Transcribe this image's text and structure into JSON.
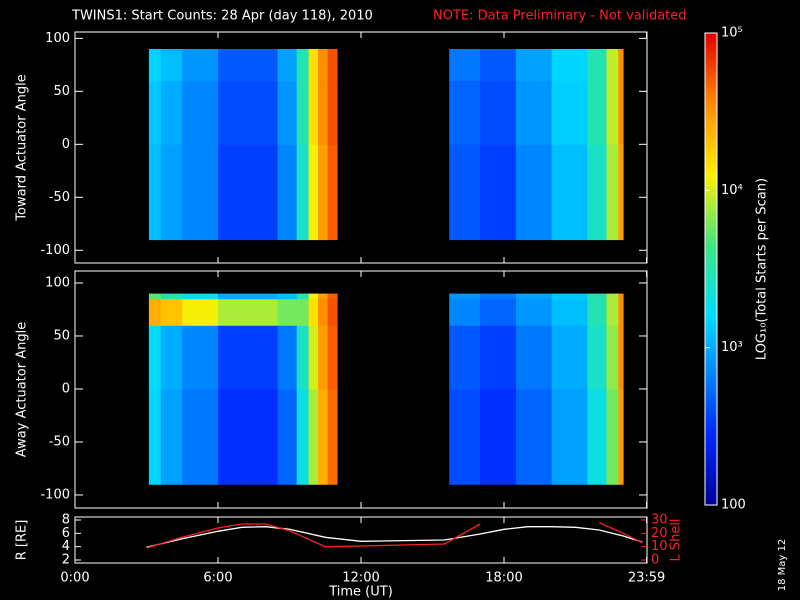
{
  "title": "TWINS1: Start Counts: 28 Apr (day 118), 2010",
  "note": "NOTE: Data Preliminary - Not validated",
  "stamp": "18 May 12",
  "colorbar": {
    "label": "LOG₁₀(Total Starts per Scan)",
    "lim": [
      100,
      100000
    ],
    "log": true,
    "ticks": [
      100,
      {
        "value": 1000,
        "label": "10³"
      },
      {
        "value": 10000,
        "label": "10⁴"
      },
      {
        "value": 100000,
        "label": "10⁵"
      }
    ]
  },
  "chart_data": [
    {
      "type": "heatmap",
      "ylabel": "Toward Actuator Angle",
      "xlim": [
        0,
        24
      ],
      "ylim": [
        -112,
        106
      ],
      "yticks": [
        -100,
        -50,
        0,
        50,
        100
      ],
      "x_edges": [
        3.1,
        3.6,
        4.5,
        6,
        8.5,
        9.3,
        9.8,
        10.2,
        10.6,
        11,
        15.7,
        17,
        18.5,
        20,
        21.5,
        22.3,
        22.8,
        23.0
      ],
      "y_edges": [
        -90,
        0,
        60,
        85,
        90
      ],
      "values": [
        [
          1200,
          900,
          700,
          350,
          700,
          2500,
          12000,
          30000,
          50000,
          null,
          450,
          350,
          700,
          1200,
          2500,
          8000,
          30000
        ],
        [
          1300,
          1000,
          700,
          400,
          800,
          3000,
          15000,
          35000,
          55000,
          null,
          500,
          400,
          800,
          1400,
          3000,
          9000,
          35000
        ],
        [
          1500,
          1200,
          800,
          450,
          900,
          3000,
          15000,
          35000,
          55000,
          null,
          600,
          450,
          900,
          1500,
          3000,
          9000,
          35000
        ],
        [
          1400,
          1100,
          800,
          450,
          900,
          3000,
          15000,
          35000,
          55000,
          null,
          600,
          450,
          900,
          1500,
          3000,
          9000,
          35000
        ]
      ]
    },
    {
      "type": "heatmap",
      "ylabel": "Away Actuator Angle",
      "xlim": [
        0,
        24
      ],
      "ylim": [
        -112.3,
        111.3
      ],
      "yticks": [
        -100,
        -50,
        0,
        50,
        100
      ],
      "x_edges": [
        3.1,
        3.6,
        4.5,
        6,
        8.5,
        9.3,
        9.8,
        10.2,
        10.6,
        11,
        15.7,
        17,
        18.5,
        20,
        21.5,
        22.3,
        22.8,
        23.0
      ],
      "y_edges": [
        -90,
        0,
        60,
        85,
        90
      ],
      "values": [
        [
          1500,
          900,
          600,
          300,
          500,
          2000,
          8000,
          25000,
          45000,
          null,
          400,
          300,
          500,
          900,
          2000,
          6000,
          30000
        ],
        [
          1600,
          1000,
          700,
          350,
          600,
          2500,
          10000,
          30000,
          50000,
          null,
          450,
          350,
          600,
          1000,
          2500,
          7000,
          35000
        ],
        [
          25000,
          20000,
          12000,
          8000,
          6000,
          6000,
          15000,
          35000,
          55000,
          null,
          700,
          500,
          800,
          1200,
          3000,
          8000,
          35000
        ],
        [
          5000,
          3000,
          2000,
          1000,
          1200,
          3000,
          12000,
          30000,
          50000,
          null,
          800,
          600,
          900,
          1300,
          3000,
          8000,
          35000
        ]
      ]
    },
    {
      "type": "line",
      "ylabel": "R [RE]",
      "y2label": "L Shell",
      "xlabel": "Time (UT)",
      "xlim": [
        0,
        24
      ],
      "xticks": [
        {
          "value": 0,
          "label": "0:00"
        },
        {
          "value": 6,
          "label": "6:00"
        },
        {
          "value": 12,
          "label": "12:00"
        },
        {
          "value": 18,
          "label": "18:00"
        },
        {
          "value": 23.983,
          "label": "23:59"
        }
      ],
      "ylim": [
        1.55,
        8.45
      ],
      "yticks": [
        2,
        4,
        6,
        8
      ],
      "y2lim": [
        -2.25,
        32.25
      ],
      "y2ticks": [
        0,
        10,
        20,
        30
      ],
      "x": [
        3,
        4.5,
        6,
        7,
        8,
        9,
        10.5,
        12,
        15.5,
        17,
        18,
        19,
        20,
        21,
        22,
        23,
        23.8
      ],
      "series": [
        {
          "name": "R",
          "color": "#ffffff",
          "values": [
            3.9,
            5.2,
            6.3,
            6.9,
            7.0,
            6.6,
            5.4,
            4.8,
            5.0,
            5.9,
            6.6,
            7.0,
            7.0,
            6.9,
            6.5,
            5.6,
            4.7
          ]
        },
        {
          "name": "L Shell",
          "color": "#ff2020",
          "axis": "y2",
          "values": [
            9,
            17,
            24,
            27,
            27,
            22,
            10,
            10.5,
            12,
            27,
            null,
            null,
            null,
            null,
            28,
            20,
            13
          ]
        }
      ]
    }
  ]
}
